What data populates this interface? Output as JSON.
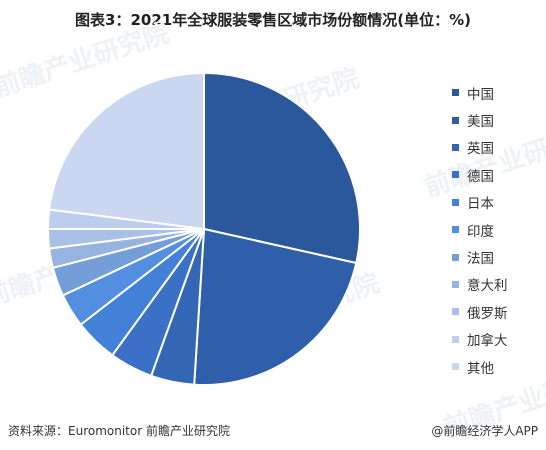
{
  "title": "图表3：2021年全球服装零售区域市场份额情况(单位：%)",
  "watermark_text": "前瞻产业研究院",
  "footer": {
    "source": "资料来源：Euromonitor 前瞻产业研究院",
    "brand": "@前瞻经济学人APP"
  },
  "chart_data": {
    "type": "pie",
    "title": "图表3：2021年全球服装零售区域市场份额情况(单位：%)",
    "unit": "%",
    "categories": [
      "中国",
      "美国",
      "英国",
      "德国",
      "日本",
      "印度",
      "法国",
      "意大利",
      "俄罗斯",
      "加拿大",
      "其他"
    ],
    "values": [
      28.5,
      22.5,
      4.5,
      4.5,
      4.5,
      3.5,
      3.0,
      2.0,
      2.0,
      2.0,
      23.0
    ],
    "colors": [
      "#2b579c",
      "#2f5fab",
      "#3466b6",
      "#3a70c6",
      "#4380d8",
      "#548ee0",
      "#749ed8",
      "#97b3e0",
      "#a9c0e7",
      "#bccdee",
      "#cbd7f0"
    ],
    "legend": "right",
    "start_angle": "12 o'clock",
    "direction": "clockwise"
  }
}
